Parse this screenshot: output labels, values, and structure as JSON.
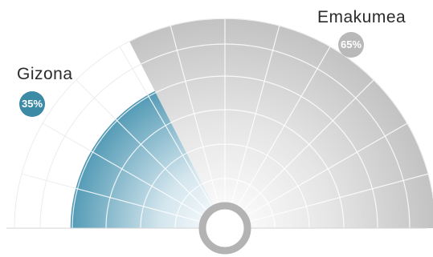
{
  "chart_data": {
    "type": "pie",
    "layout": "half-donut",
    "series": [
      {
        "name": "Gizona",
        "value": 35,
        "label": "35%",
        "color": "#3d8aa6"
      },
      {
        "name": "Emakumea",
        "value": 65,
        "label": "65%",
        "color": "#b9b9b9"
      }
    ],
    "grid": true
  }
}
